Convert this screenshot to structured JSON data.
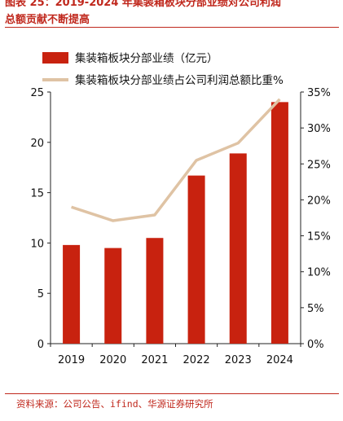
{
  "title_line1": "图表 25：2019-2024 年集装箱板块分部业绩对公司利润",
  "title_line2": "总额贡献不断提高",
  "source": "资料来源：公司公告、ifind、华源证券研究所",
  "chart_data": {
    "type": "bar",
    "categories": [
      "2019",
      "2020",
      "2021",
      "2022",
      "2023",
      "2024"
    ],
    "series": [
      {
        "name": "集装箱板块分部业绩（亿元）",
        "type": "bar",
        "axis": "left",
        "values": [
          9.8,
          9.5,
          10.5,
          16.7,
          18.9,
          24.0
        ]
      },
      {
        "name": "集装箱板块分部业绩占公司利润总额比重%",
        "type": "line",
        "axis": "right",
        "values": [
          19.0,
          17.1,
          17.9,
          25.5,
          27.9,
          34.0
        ]
      }
    ],
    "ylim_left": [
      0,
      25
    ],
    "yticks_left": [
      "0",
      "5",
      "10",
      "15",
      "20",
      "25"
    ],
    "ylim_right": [
      0,
      35
    ],
    "yticks_right": [
      "0%",
      "5%",
      "10%",
      "15%",
      "20%",
      "25%",
      "30%",
      "35%"
    ],
    "grid": false,
    "legend_position": "top-left",
    "colors": {
      "bar": "#c8220f",
      "line": "#dfc3a4",
      "title": "#c0281d"
    }
  }
}
